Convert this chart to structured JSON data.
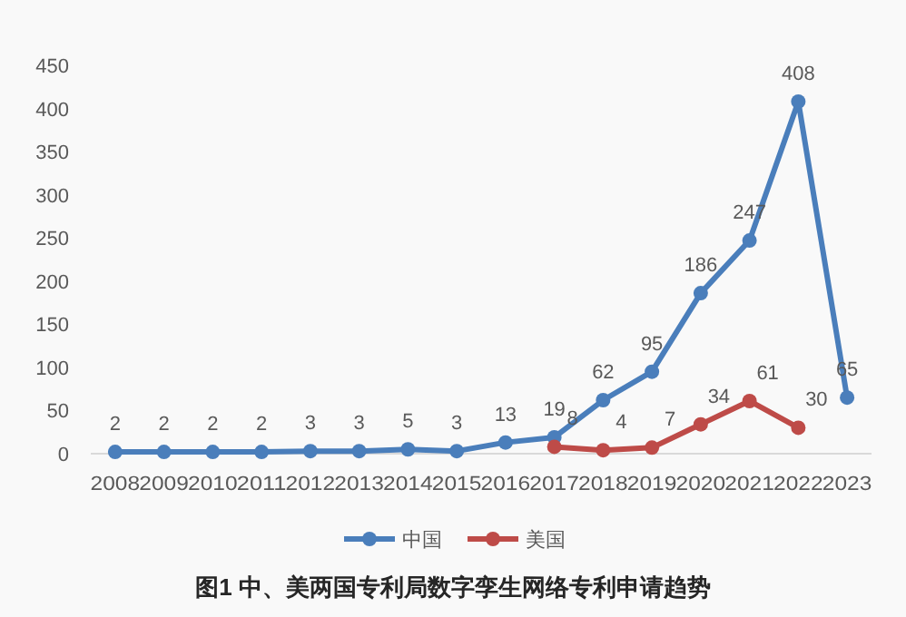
{
  "chart_data": {
    "type": "line",
    "title": "图1 中、美两国专利局数字孪生网络专利申请趋势",
    "categories": [
      "2008",
      "2009",
      "2010",
      "2011",
      "2012",
      "2013",
      "2014",
      "2015",
      "2016",
      "2017",
      "2018",
      "2019",
      "2020",
      "2021",
      "2022",
      "2023"
    ],
    "series": [
      {
        "name": "中国",
        "color": "#4a7ebb",
        "values": [
          2,
          2,
          2,
          2,
          3,
          3,
          5,
          3,
          13,
          19,
          62,
          95,
          186,
          247,
          408,
          65
        ]
      },
      {
        "name": "美国",
        "color": "#be4b48",
        "values": [
          null,
          null,
          null,
          null,
          null,
          null,
          null,
          null,
          null,
          8,
          4,
          7,
          34,
          61,
          30,
          null
        ]
      }
    ],
    "ylim": [
      0,
      450
    ],
    "yticks": [
      0,
      50,
      100,
      150,
      200,
      250,
      300,
      350,
      400,
      450
    ],
    "grid": false,
    "legend": "bottom",
    "marker": "circle",
    "data_labels": true
  }
}
